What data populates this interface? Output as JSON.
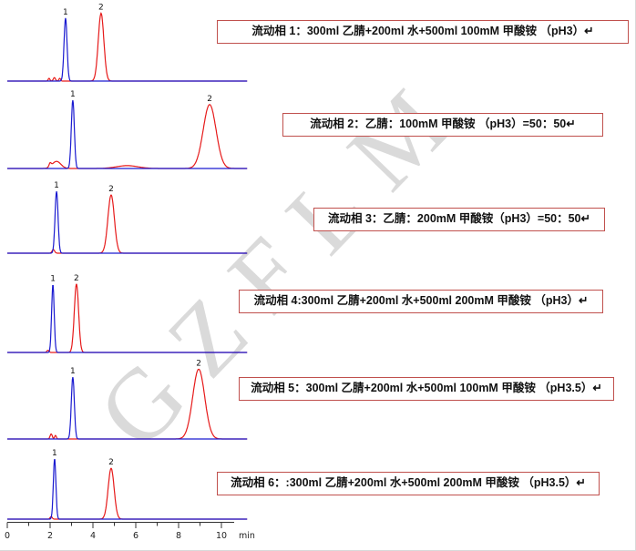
{
  "colors": {
    "blue_trace": "#1a1ad0",
    "red_trace": "#e61a1a",
    "box_border": "#c0504d",
    "watermark": "#dadada",
    "axis": "#333333"
  },
  "watermark": {
    "text": "GZFLM"
  },
  "axis": {
    "ticks": [
      0,
      2,
      4,
      6,
      8,
      10
    ],
    "minor_ticks": [
      1,
      3,
      5,
      7,
      9
    ],
    "unit": "min"
  },
  "boxes": [
    {
      "text": "流动相 1：300ml 乙腈+200ml 水+500ml 100mM 甲酸铵 （pH3）↵"
    },
    {
      "text": "流动相 2：乙腈：100mM 甲酸铵 （pH3）=50：50↵"
    },
    {
      "text": "流动相 3：乙腈：200mM 甲酸铵（pH3）=50：50↵"
    },
    {
      "text": "流动相 4:300ml 乙腈+200ml 水+500ml 200mM 甲酸铵 （pH3）↵"
    },
    {
      "text": "流动相 5：300ml 乙腈+200ml 水+500ml 100mM 甲酸铵 （pH3.5）↵"
    },
    {
      "text": "流动相 6：:300ml 乙腈+200ml 水+500ml 200mM 甲酸铵 （pH3.5）↵"
    }
  ],
  "chart_data": [
    {
      "type": "line",
      "panel": 1,
      "xlabel": "min",
      "xlim": [
        0,
        11.2
      ],
      "peak_labels": [
        {
          "text": "1",
          "t": 2.72,
          "h": 0.91
        },
        {
          "text": "2",
          "t": 4.38,
          "h": 0.98
        }
      ],
      "series": [
        {
          "name": "red",
          "color": "#e61a1a",
          "peaks": [
            {
              "t": 1.95,
              "h": 0.04,
              "w": 0.04
            },
            {
              "t": 2.2,
              "h": 0.05,
              "w": 0.05
            },
            {
              "t": 2.45,
              "h": 0.04,
              "w": 0.04
            },
            {
              "t": 4.38,
              "h": 0.98,
              "w": 0.13
            }
          ]
        },
        {
          "name": "blue",
          "color": "#1a1ad0",
          "peaks": [
            {
              "t": 2.72,
              "h": 0.91,
              "w": 0.07
            }
          ]
        }
      ]
    },
    {
      "type": "line",
      "panel": 2,
      "xlabel": "min",
      "xlim": [
        0,
        11.2
      ],
      "peak_labels": [
        {
          "text": "1",
          "t": 3.06,
          "h": 0.96
        },
        {
          "text": "2",
          "t": 9.45,
          "h": 0.9
        }
      ],
      "series": [
        {
          "name": "red",
          "color": "#e61a1a",
          "peaks": [
            {
              "t": 2.0,
              "h": 0.05,
              "w": 0.05
            },
            {
              "t": 2.3,
              "h": 0.1,
              "w": 0.2
            },
            {
              "t": 5.6,
              "h": 0.04,
              "w": 0.5
            },
            {
              "t": 9.45,
              "h": 0.9,
              "w": 0.3
            }
          ]
        },
        {
          "name": "blue",
          "color": "#1a1ad0",
          "peaks": [
            {
              "t": 3.06,
              "h": 0.96,
              "w": 0.07
            }
          ]
        }
      ]
    },
    {
      "type": "line",
      "panel": 3,
      "xlabel": "min",
      "xlim": [
        0,
        11.2
      ],
      "peak_labels": [
        {
          "text": "1",
          "t": 2.3,
          "h": 0.86
        },
        {
          "text": "2",
          "t": 4.85,
          "h": 0.81
        }
      ],
      "series": [
        {
          "name": "red",
          "color": "#e61a1a",
          "peaks": [
            {
              "t": 2.15,
              "h": 0.05,
              "w": 0.06
            },
            {
              "t": 4.85,
              "h": 0.81,
              "w": 0.15
            }
          ]
        },
        {
          "name": "blue",
          "color": "#1a1ad0",
          "peaks": [
            {
              "t": 2.3,
              "h": 0.86,
              "w": 0.07
            }
          ]
        }
      ]
    },
    {
      "type": "line",
      "panel": 4,
      "xlabel": "min",
      "xlim": [
        0,
        11.2
      ],
      "peak_labels": [
        {
          "text": "1",
          "t": 2.13,
          "h": 0.93
        },
        {
          "text": "2",
          "t": 3.23,
          "h": 0.94
        }
      ],
      "series": [
        {
          "name": "red",
          "color": "#e61a1a",
          "peaks": [
            {
              "t": 1.9,
              "h": 0.03,
              "w": 0.05
            },
            {
              "t": 3.23,
              "h": 0.94,
              "w": 0.1
            }
          ]
        },
        {
          "name": "blue",
          "color": "#1a1ad0",
          "peaks": [
            {
              "t": 2.13,
              "h": 0.93,
              "w": 0.06
            }
          ]
        }
      ]
    },
    {
      "type": "line",
      "panel": 5,
      "xlabel": "min",
      "xlim": [
        0,
        11.2
      ],
      "peak_labels": [
        {
          "text": "1",
          "t": 3.06,
          "h": 0.86
        },
        {
          "text": "2",
          "t": 8.94,
          "h": 0.97
        }
      ],
      "series": [
        {
          "name": "red",
          "color": "#e61a1a",
          "peaks": [
            {
              "t": 2.05,
              "h": 0.07,
              "w": 0.05
            },
            {
              "t": 2.25,
              "h": 0.05,
              "w": 0.04
            },
            {
              "t": 8.94,
              "h": 0.97,
              "w": 0.28
            }
          ]
        },
        {
          "name": "blue",
          "color": "#1a1ad0",
          "peaks": [
            {
              "t": 3.06,
              "h": 0.86,
              "w": 0.07
            }
          ]
        }
      ]
    },
    {
      "type": "line",
      "panel": 6,
      "xlabel": "min",
      "xlim": [
        0,
        11.2
      ],
      "peak_labels": [
        {
          "text": "1",
          "t": 2.21,
          "h": 0.96
        },
        {
          "text": "2",
          "t": 4.85,
          "h": 0.81
        }
      ],
      "series": [
        {
          "name": "red",
          "color": "#e61a1a",
          "peaks": [
            {
              "t": 2.05,
              "h": 0.04,
              "w": 0.05
            },
            {
              "t": 4.85,
              "h": 0.81,
              "w": 0.14
            }
          ]
        },
        {
          "name": "blue",
          "color": "#1a1ad0",
          "peaks": [
            {
              "t": 2.21,
              "h": 0.96,
              "w": 0.06
            }
          ]
        }
      ]
    }
  ]
}
